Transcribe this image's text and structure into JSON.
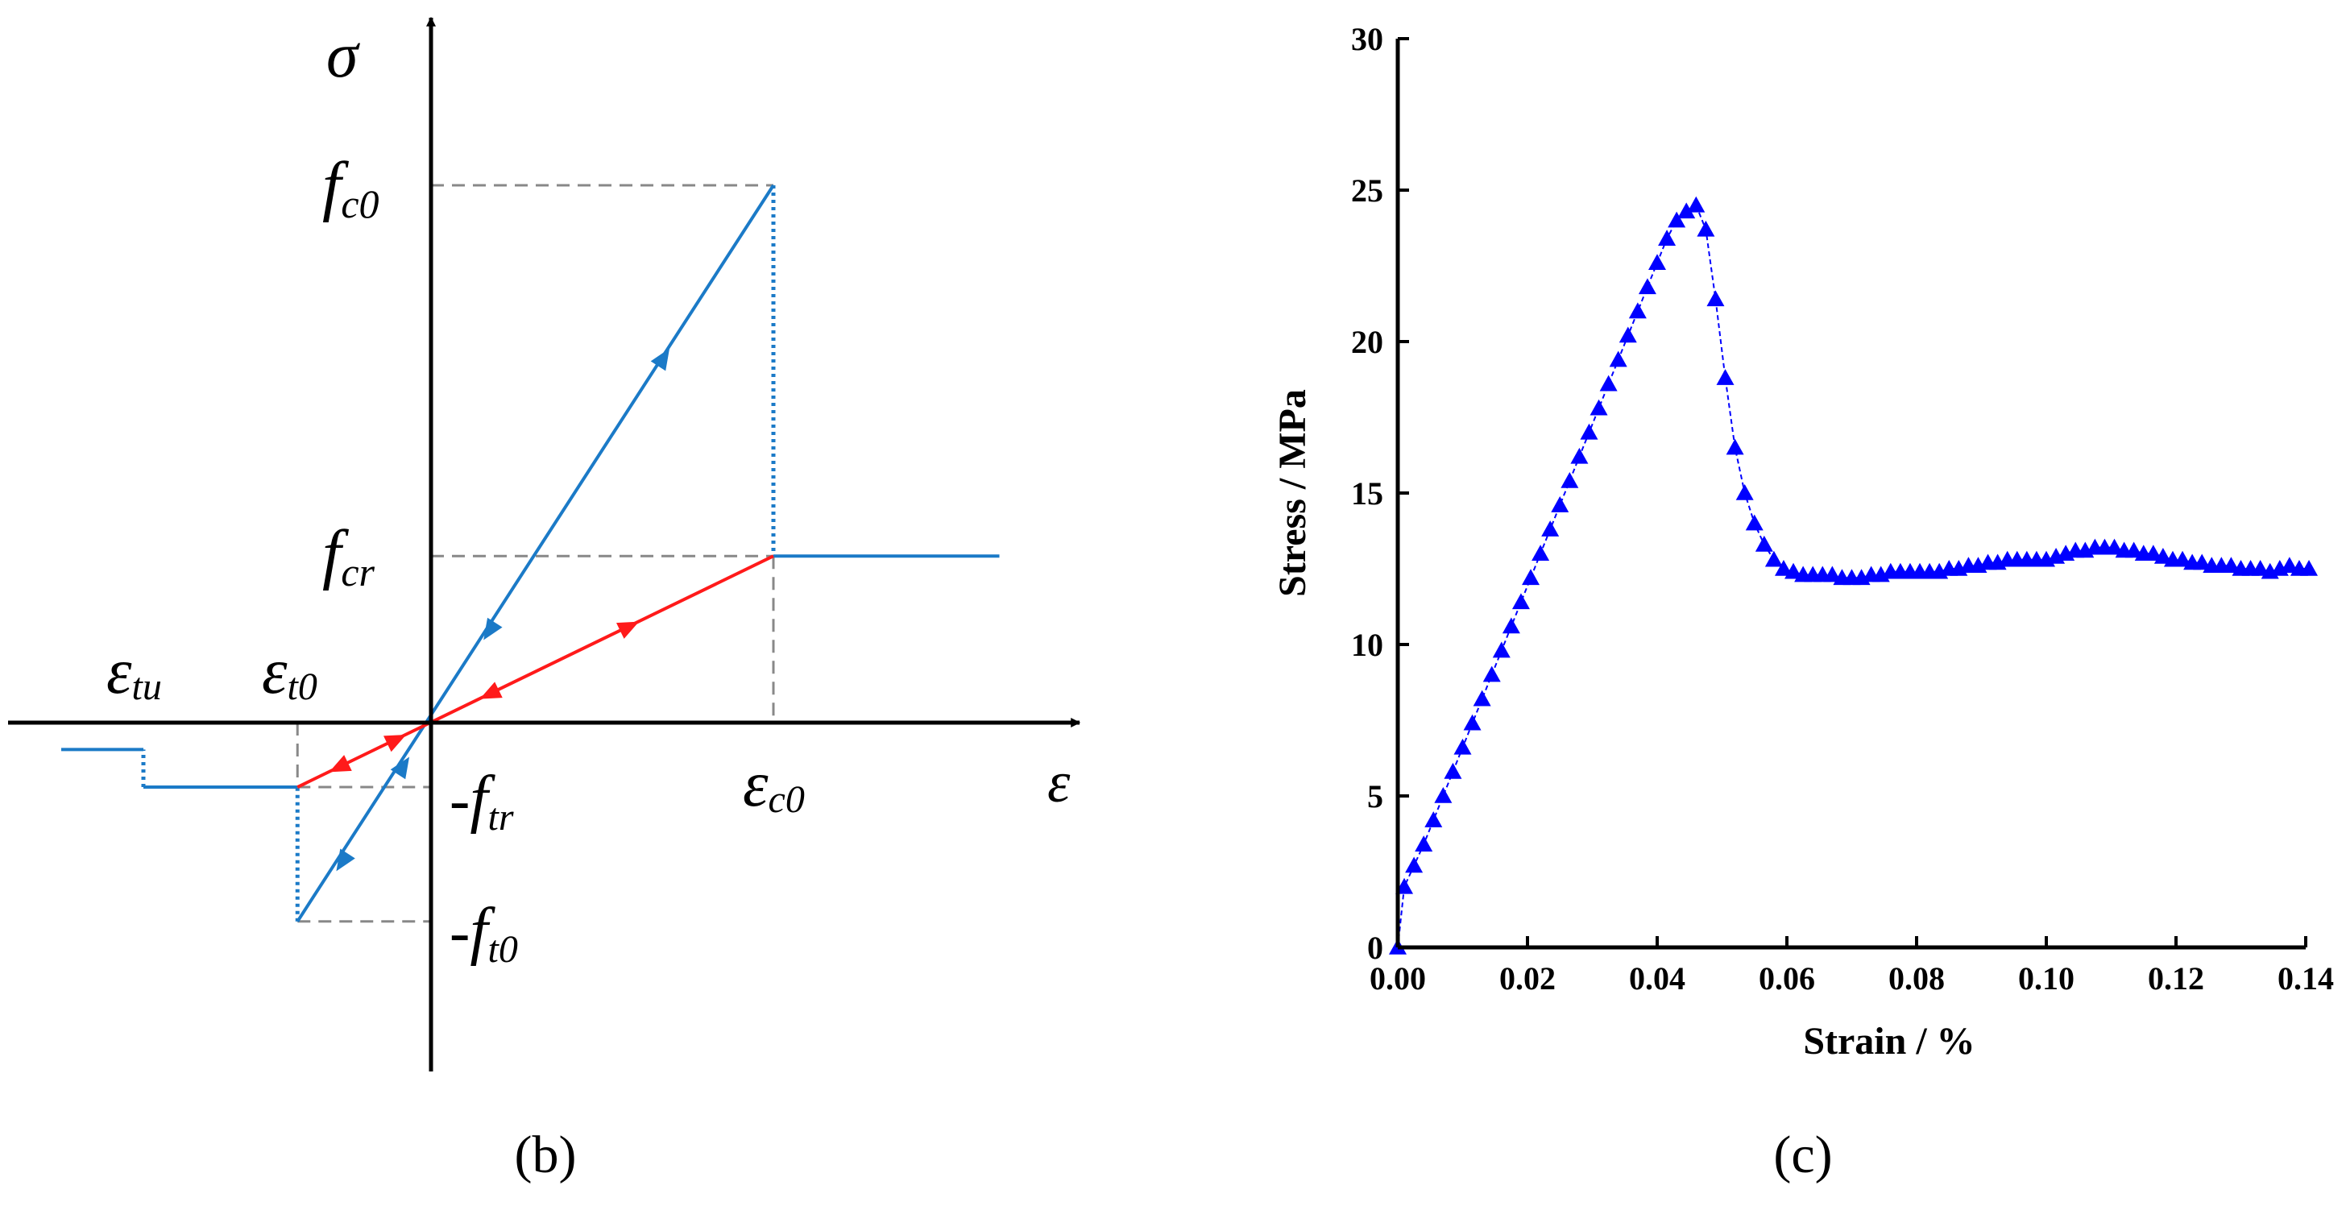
{
  "panels": {
    "b": {
      "label": "(b)"
    },
    "c": {
      "label": "(c)"
    }
  },
  "colors": {
    "blue": "#1b7ac7",
    "red": "#ff1a1a",
    "dash": "#888888",
    "marker": "#0000ff",
    "axis": "#000000"
  },
  "chart_data": [
    {
      "id": "b",
      "type": "line",
      "title": "",
      "axes": {
        "y_symbol": "σ",
        "x_symbol": "ε"
      },
      "stress_labels": [
        {
          "id": "fc0",
          "prefix": "",
          "main": "f",
          "sub": "c0"
        },
        {
          "id": "fcr",
          "prefix": "",
          "main": "f",
          "sub": "cr"
        },
        {
          "id": "ftr",
          "prefix": "-",
          "main": "f",
          "sub": "tr"
        },
        {
          "id": "ft0",
          "prefix": "-",
          "main": "f",
          "sub": "t0"
        }
      ],
      "strain_labels": [
        {
          "id": "etu",
          "main": "ε",
          "sub": "tu"
        },
        {
          "id": "et0",
          "main": "ε",
          "sub": "t0"
        },
        {
          "id": "ec0",
          "main": "ε",
          "sub": "c0"
        }
      ],
      "characteristic_values": {
        "eps_c0": 1.0,
        "eps_t0": -0.39,
        "eps_tu": -0.84,
        "f_c0": 1.0,
        "f_cr": 0.31,
        "f_tr": -0.12,
        "f_t0": -0.37,
        "eps_residual_end": 1.66,
        "eps_left_end": -1.08,
        "f_tail": -0.05
      },
      "series": [
        {
          "name": "elastic loading (blue)",
          "color": "blue",
          "points": [
            [
              -0.39,
              -0.37
            ],
            [
              1.0,
              1.0
            ]
          ]
        },
        {
          "name": "compression drop",
          "color": "blue",
          "style": "dotted",
          "points": [
            [
              1.0,
              1.0
            ],
            [
              1.0,
              0.31
            ]
          ]
        },
        {
          "name": "residual compression",
          "color": "blue",
          "points": [
            [
              1.0,
              0.31
            ],
            [
              1.66,
              0.31
            ]
          ]
        },
        {
          "name": "tension drop",
          "color": "blue",
          "style": "dotted",
          "points": [
            [
              -0.39,
              -0.37
            ],
            [
              -0.39,
              -0.12
            ]
          ]
        },
        {
          "name": "residual tension",
          "color": "blue",
          "points": [
            [
              -0.39,
              -0.12
            ],
            [
              -0.84,
              -0.12
            ]
          ]
        },
        {
          "name": "ultimate tension drop",
          "color": "blue",
          "style": "dotted",
          "points": [
            [
              -0.84,
              -0.12
            ],
            [
              -0.84,
              -0.05
            ]
          ]
        },
        {
          "name": "tension tail",
          "color": "blue",
          "points": [
            [
              -0.84,
              -0.05
            ],
            [
              -1.08,
              -0.05
            ]
          ]
        },
        {
          "name": "unloading / reloading (red)",
          "color": "red",
          "points": [
            [
              -0.39,
              -0.12
            ],
            [
              1.0,
              0.31
            ]
          ]
        }
      ]
    },
    {
      "id": "c",
      "type": "scatter",
      "title": "",
      "xlabel": "Strain / %",
      "ylabel": "Stress / MPa",
      "xlim": [
        0,
        0.14
      ],
      "ylim": [
        0,
        30
      ],
      "xticks": [
        "0.00",
        "0.02",
        "0.04",
        "0.06",
        "0.08",
        "0.10",
        "0.12",
        "0.14"
      ],
      "yticks": [
        "0",
        "5",
        "10",
        "15",
        "20",
        "25",
        "30"
      ],
      "x": [
        0.0,
        0.001,
        0.0025,
        0.004,
        0.0055,
        0.007,
        0.0085,
        0.01,
        0.0115,
        0.013,
        0.0145,
        0.016,
        0.0175,
        0.019,
        0.0205,
        0.022,
        0.0235,
        0.025,
        0.0265,
        0.028,
        0.0295,
        0.031,
        0.0325,
        0.034,
        0.0355,
        0.037,
        0.0385,
        0.04,
        0.0415,
        0.043,
        0.0445,
        0.046,
        0.0475,
        0.049,
        0.0505,
        0.052,
        0.0535,
        0.055,
        0.0565,
        0.058,
        0.0595,
        0.061,
        0.0625,
        0.064,
        0.0655,
        0.067,
        0.0685,
        0.07,
        0.0715,
        0.073,
        0.0745,
        0.076,
        0.0775,
        0.079,
        0.0805,
        0.082,
        0.0835,
        0.085,
        0.0865,
        0.088,
        0.0895,
        0.091,
        0.0925,
        0.094,
        0.0955,
        0.097,
        0.0985,
        0.1,
        0.1015,
        0.103,
        0.1045,
        0.106,
        0.1075,
        0.109,
        0.1105,
        0.112,
        0.1135,
        0.115,
        0.1165,
        0.118,
        0.1195,
        0.121,
        0.1225,
        0.124,
        0.1255,
        0.127,
        0.1285,
        0.13,
        0.1315,
        0.133,
        0.1345,
        0.136,
        0.1375,
        0.139,
        0.1405
      ],
      "y": [
        0.0,
        2.0,
        2.7,
        3.4,
        4.2,
        5.0,
        5.8,
        6.6,
        7.4,
        8.2,
        9.0,
        9.8,
        10.6,
        11.4,
        12.2,
        13.0,
        13.8,
        14.6,
        15.4,
        16.2,
        17.0,
        17.8,
        18.6,
        19.4,
        20.2,
        21.0,
        21.8,
        22.6,
        23.4,
        24.0,
        24.3,
        24.5,
        23.7,
        21.4,
        18.8,
        16.5,
        15.0,
        14.0,
        13.3,
        12.8,
        12.5,
        12.4,
        12.3,
        12.3,
        12.3,
        12.3,
        12.2,
        12.2,
        12.2,
        12.3,
        12.3,
        12.4,
        12.4,
        12.4,
        12.4,
        12.4,
        12.4,
        12.5,
        12.5,
        12.6,
        12.6,
        12.7,
        12.7,
        12.8,
        12.8,
        12.8,
        12.8,
        12.8,
        12.9,
        13.0,
        13.1,
        13.1,
        13.2,
        13.2,
        13.2,
        13.1,
        13.1,
        13.0,
        13.0,
        12.9,
        12.8,
        12.8,
        12.7,
        12.7,
        12.6,
        12.6,
        12.6,
        12.5,
        12.5,
        12.5,
        12.4,
        12.5,
        12.6,
        12.5,
        12.5
      ]
    }
  ]
}
